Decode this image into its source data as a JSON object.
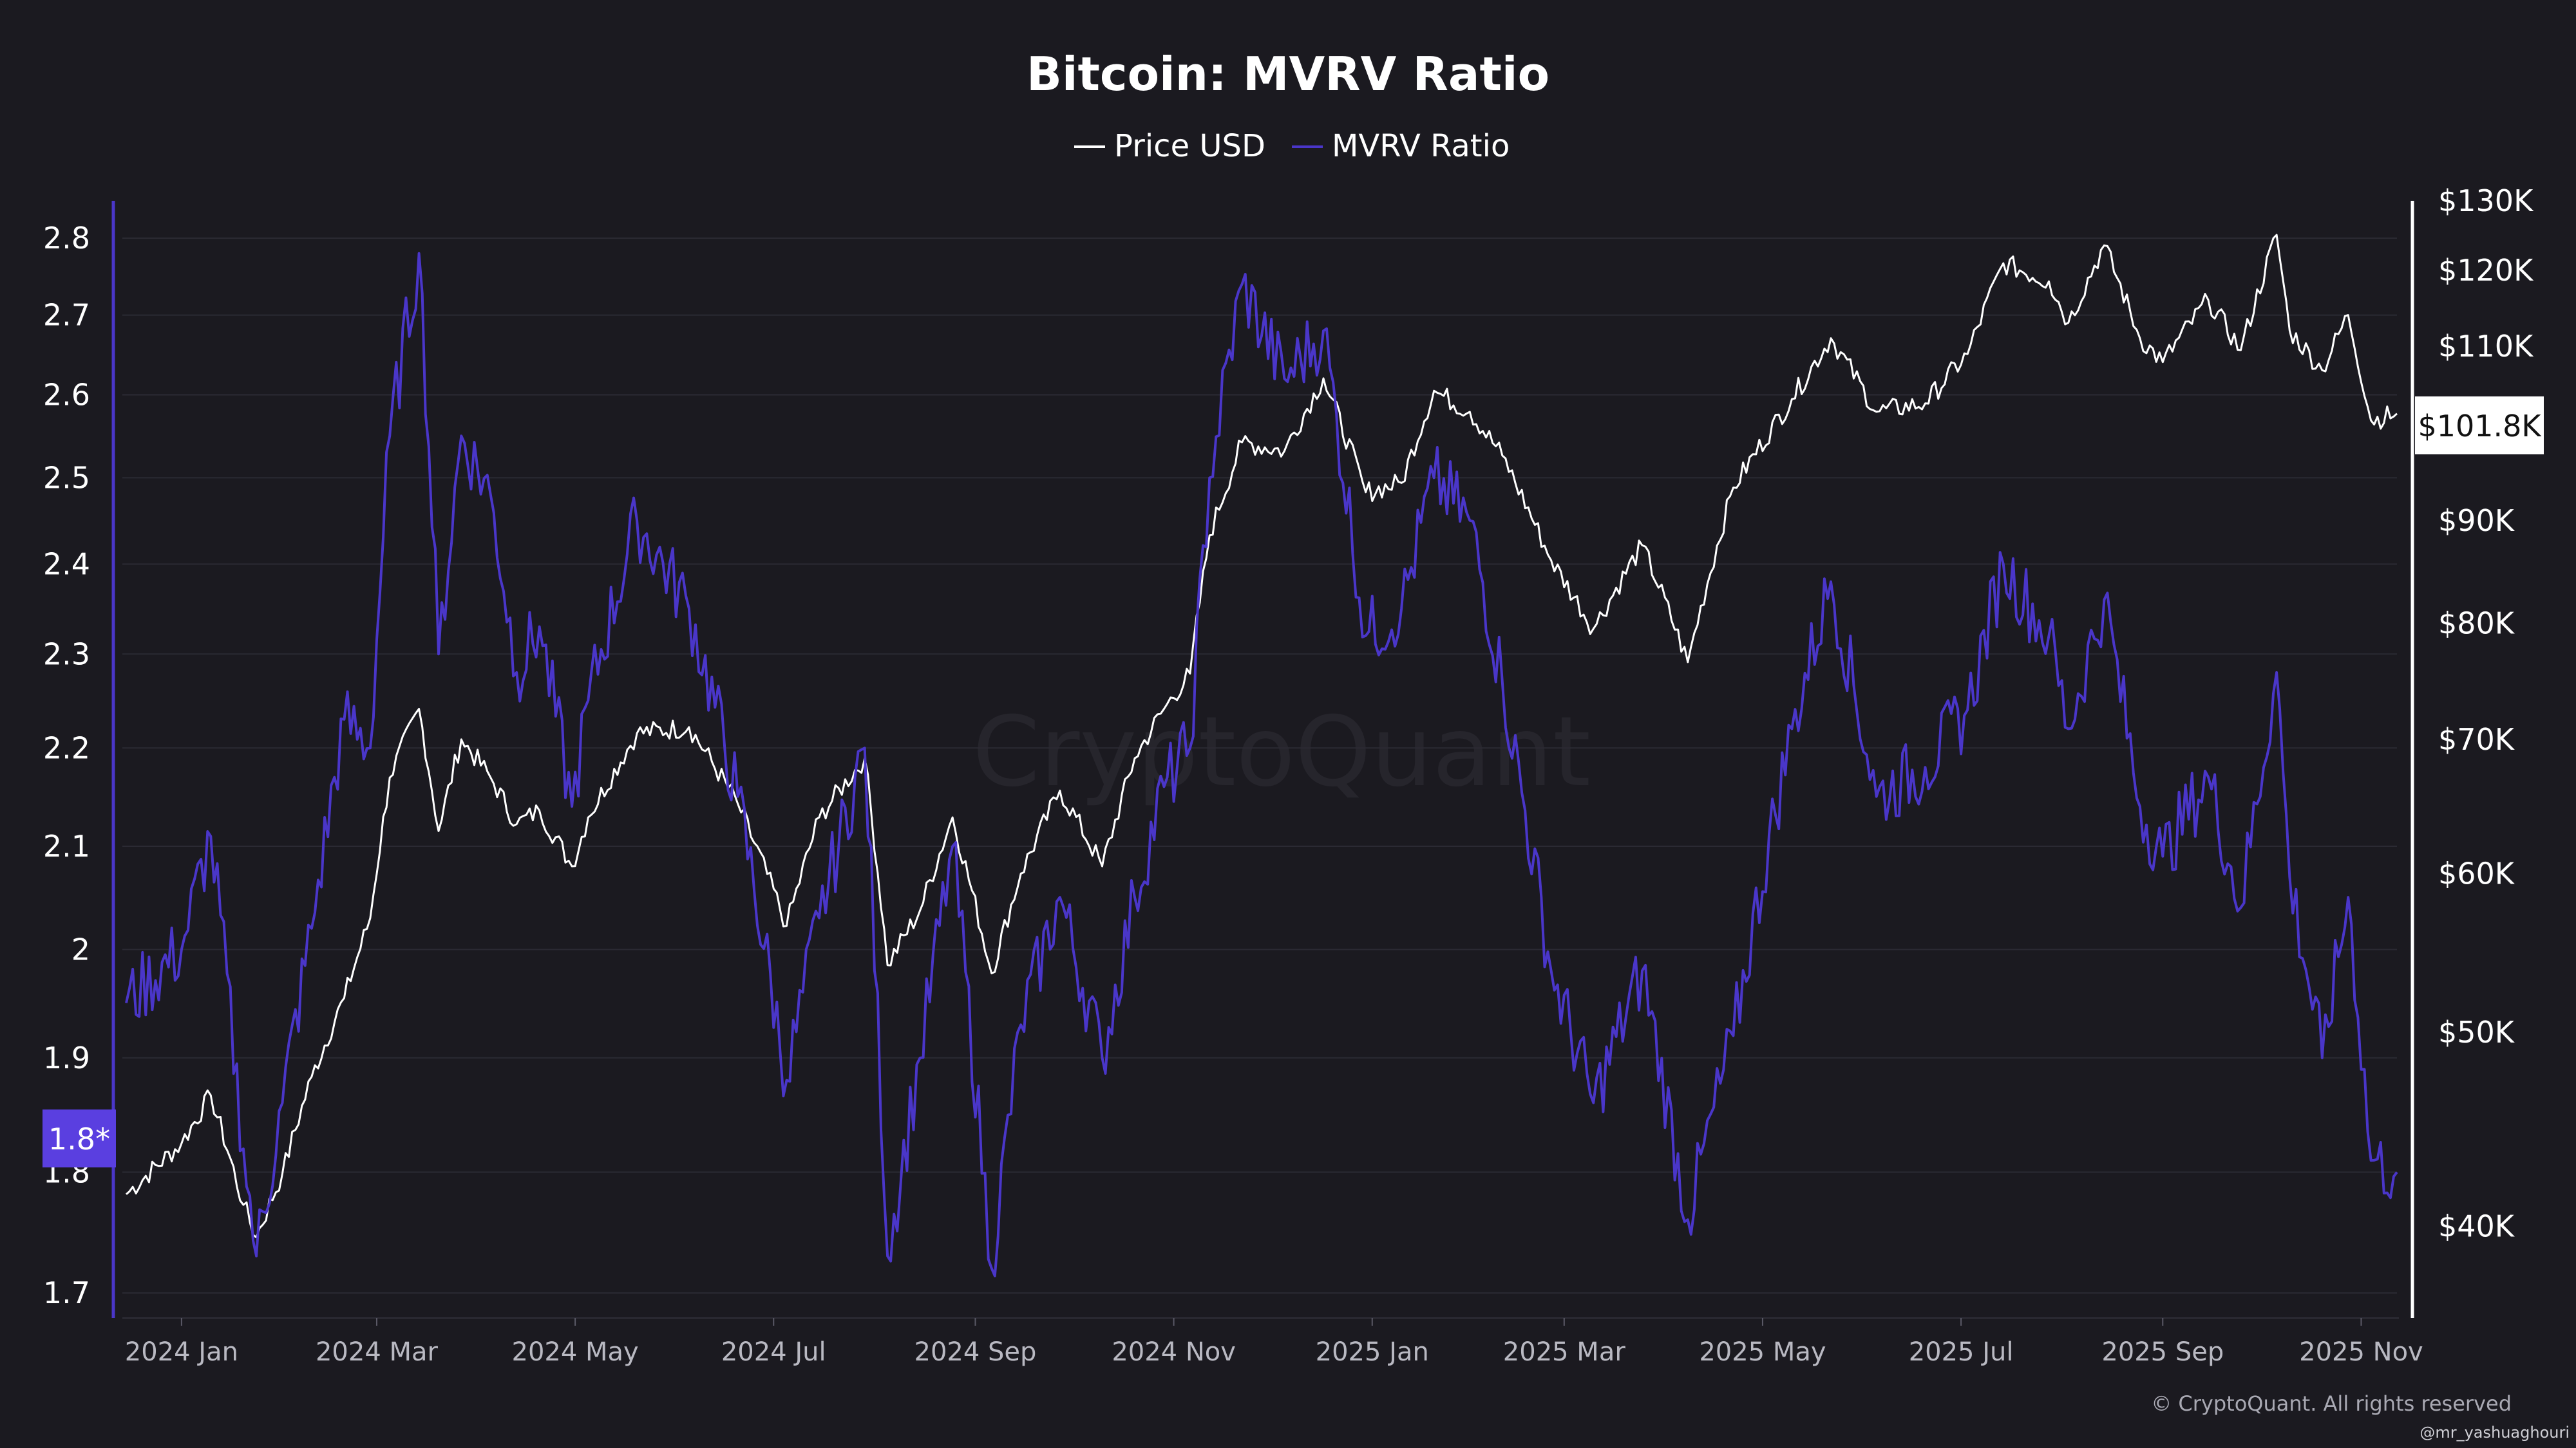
{
  "chart_data": {
    "type": "line",
    "title": "Bitcoin: MVRV Ratio",
    "legend": [
      {
        "name": "Price USD",
        "color": "#ffffff"
      },
      {
        "name": "MVRV Ratio",
        "color": "#4a36c9"
      }
    ],
    "legend_position": "top-center",
    "grid": true,
    "x_axis": {
      "type": "date",
      "range": [
        "2023-12-15",
        "2025-11-12"
      ],
      "tick_labels": [
        "2024 Jan",
        "2024 Mar",
        "2024 May",
        "2024 Jul",
        "2024 Sep",
        "2024 Nov",
        "2025 Jan",
        "2025 Mar",
        "2025 May",
        "2025 Jul",
        "2025 Sep",
        "2025 Nov"
      ],
      "tick_dates": [
        "2024-01-01",
        "2024-03-01",
        "2024-05-01",
        "2024-07-01",
        "2024-09-01",
        "2024-11-01",
        "2025-01-01",
        "2025-03-01",
        "2025-05-01",
        "2025-07-01",
        "2025-09-01",
        "2025-11-01"
      ]
    },
    "y_left": {
      "label": "",
      "scale": "log",
      "range": [
        1.68,
        2.85
      ],
      "ticks": [
        1.7,
        1.8,
        1.9,
        2,
        2.1,
        2.2,
        2.3,
        2.4,
        2.5,
        2.6,
        2.7,
        2.8
      ],
      "tick_labels": [
        "1.7",
        "1.8",
        "1.9",
        "2",
        "2.1",
        "2.2",
        "2.3",
        "2.4",
        "2.5",
        "2.6",
        "2.7",
        "2.8"
      ],
      "current_value_label": "1.8*",
      "current_value": 1.8
    },
    "y_right": {
      "label": "",
      "scale": "log",
      "range": [
        36000,
        130000
      ],
      "ticks": [
        40000,
        50000,
        60000,
        70000,
        80000,
        90000,
        110000,
        120000,
        130000
      ],
      "tick_labels": [
        "$40K",
        "$50K",
        "$60K",
        "$70K",
        "$80K",
        "$90K",
        "$110K",
        "$120K",
        "$130K"
      ],
      "current_value_label": "$101.8K",
      "current_value": 101800
    },
    "series": [
      {
        "name": "Price USD",
        "axis": "right",
        "color": "#ffffff",
        "points": [
          [
            "2023-12-15",
            41500
          ],
          [
            "2024-01-01",
            44000
          ],
          [
            "2024-01-10",
            46500
          ],
          [
            "2024-01-20",
            41000
          ],
          [
            "2024-01-24",
            39500
          ],
          [
            "2024-02-01",
            42500
          ],
          [
            "2024-02-10",
            47500
          ],
          [
            "2024-02-20",
            52000
          ],
          [
            "2024-02-28",
            57000
          ],
          [
            "2024-03-05",
            67000
          ],
          [
            "2024-03-14",
            72500
          ],
          [
            "2024-03-20",
            63000
          ],
          [
            "2024-03-27",
            70000
          ],
          [
            "2024-04-05",
            67000
          ],
          [
            "2024-04-13",
            63500
          ],
          [
            "2024-04-20",
            64500
          ],
          [
            "2024-04-30",
            60500
          ],
          [
            "2024-05-05",
            64000
          ],
          [
            "2024-05-20",
            70500
          ],
          [
            "2024-06-05",
            71000
          ],
          [
            "2024-06-20",
            65000
          ],
          [
            "2024-07-05",
            56500
          ],
          [
            "2024-07-15",
            64000
          ],
          [
            "2024-07-29",
            68500
          ],
          [
            "2024-08-05",
            54000
          ],
          [
            "2024-08-15",
            57500
          ],
          [
            "2024-08-25",
            64000
          ],
          [
            "2024-09-06",
            53500
          ],
          [
            "2024-09-15",
            60000
          ],
          [
            "2024-09-27",
            66000
          ],
          [
            "2024-10-10",
            60500
          ],
          [
            "2024-10-20",
            68500
          ],
          [
            "2024-10-29",
            72500
          ],
          [
            "2024-11-06",
            75500
          ],
          [
            "2024-11-12",
            88500
          ],
          [
            "2024-11-22",
            98500
          ],
          [
            "2024-12-05",
            97500
          ],
          [
            "2024-12-17",
            106000
          ],
          [
            "2024-12-30",
            93000
          ],
          [
            "2025-01-10",
            94000
          ],
          [
            "2025-01-20",
            104500
          ],
          [
            "2025-01-31",
            102000
          ],
          [
            "2025-02-10",
            97000
          ],
          [
            "2025-02-25",
            86000
          ],
          [
            "2025-03-10",
            79500
          ],
          [
            "2025-03-25",
            87500
          ],
          [
            "2025-04-08",
            76500
          ],
          [
            "2025-04-22",
            93500
          ],
          [
            "2025-05-10",
            103500
          ],
          [
            "2025-05-22",
            111000
          ],
          [
            "2025-06-05",
            102000
          ],
          [
            "2025-06-20",
            103000
          ],
          [
            "2025-07-03",
            109000
          ],
          [
            "2025-07-14",
            121000
          ],
          [
            "2025-07-28",
            118500
          ],
          [
            "2025-08-03",
            113000
          ],
          [
            "2025-08-14",
            123500
          ],
          [
            "2025-08-25",
            111000
          ],
          [
            "2025-09-01",
            108000
          ],
          [
            "2025-09-15",
            116000
          ],
          [
            "2025-09-25",
            109500
          ],
          [
            "2025-10-06",
            125000
          ],
          [
            "2025-10-10",
            112000
          ],
          [
            "2025-10-20",
            107000
          ],
          [
            "2025-10-28",
            114000
          ],
          [
            "2025-11-04",
            101000
          ],
          [
            "2025-11-12",
            101800
          ]
        ]
      },
      {
        "name": "MVRV Ratio",
        "axis": "left",
        "color": "#4a36c9",
        "points": [
          [
            "2023-12-15",
            1.95
          ],
          [
            "2024-01-01",
            2.0
          ],
          [
            "2024-01-10",
            2.11
          ],
          [
            "2024-01-20",
            1.82
          ],
          [
            "2024-01-24",
            1.73
          ],
          [
            "2024-02-01",
            1.86
          ],
          [
            "2024-02-10",
            2.02
          ],
          [
            "2024-02-20",
            2.23
          ],
          [
            "2024-02-28",
            2.2
          ],
          [
            "2024-03-05",
            2.55
          ],
          [
            "2024-03-14",
            2.78
          ],
          [
            "2024-03-20",
            2.3
          ],
          [
            "2024-03-27",
            2.55
          ],
          [
            "2024-04-05",
            2.48
          ],
          [
            "2024-04-13",
            2.28
          ],
          [
            "2024-04-20",
            2.33
          ],
          [
            "2024-04-30",
            2.14
          ],
          [
            "2024-05-05",
            2.25
          ],
          [
            "2024-05-20",
            2.45
          ],
          [
            "2024-06-05",
            2.35
          ],
          [
            "2024-06-20",
            2.15
          ],
          [
            "2024-07-05",
            1.88
          ],
          [
            "2024-07-15",
            2.03
          ],
          [
            "2024-07-29",
            2.2
          ],
          [
            "2024-08-05",
            1.73
          ],
          [
            "2024-08-15",
            1.9
          ],
          [
            "2024-08-25",
            2.1
          ],
          [
            "2024-09-06",
            1.72
          ],
          [
            "2024-09-15",
            1.93
          ],
          [
            "2024-09-27",
            2.05
          ],
          [
            "2024-10-10",
            1.9
          ],
          [
            "2024-10-20",
            2.05
          ],
          [
            "2024-10-29",
            2.16
          ],
          [
            "2024-11-06",
            2.2
          ],
          [
            "2024-11-12",
            2.5
          ],
          [
            "2024-11-22",
            2.74
          ],
          [
            "2024-12-05",
            2.62
          ],
          [
            "2024-12-17",
            2.68
          ],
          [
            "2024-12-30",
            2.32
          ],
          [
            "2025-01-10",
            2.35
          ],
          [
            "2025-01-20",
            2.5
          ],
          [
            "2025-01-31",
            2.45
          ],
          [
            "2025-02-10",
            2.27
          ],
          [
            "2025-02-25",
            1.98
          ],
          [
            "2025-03-10",
            1.86
          ],
          [
            "2025-03-25",
            1.98
          ],
          [
            "2025-04-08",
            1.76
          ],
          [
            "2025-04-22",
            1.92
          ],
          [
            "2025-05-10",
            2.22
          ],
          [
            "2025-05-22",
            2.38
          ],
          [
            "2025-06-05",
            2.15
          ],
          [
            "2025-06-20",
            2.18
          ],
          [
            "2025-07-03",
            2.24
          ],
          [
            "2025-07-14",
            2.4
          ],
          [
            "2025-07-28",
            2.32
          ],
          [
            "2025-08-03",
            2.22
          ],
          [
            "2025-08-14",
            2.36
          ],
          [
            "2025-08-25",
            2.14
          ],
          [
            "2025-09-01",
            2.09
          ],
          [
            "2025-09-15",
            2.17
          ],
          [
            "2025-09-25",
            2.04
          ],
          [
            "2025-10-06",
            2.28
          ],
          [
            "2025-10-10",
            2.07
          ],
          [
            "2025-10-20",
            1.9
          ],
          [
            "2025-10-28",
            2.05
          ],
          [
            "2025-11-04",
            1.81
          ],
          [
            "2025-11-12",
            1.8
          ]
        ]
      }
    ]
  },
  "watermark": "CryptoQuant",
  "footer": {
    "copyright": "© CryptoQuant. All rights reserved",
    "handle": "@mr_yashuaghouri"
  }
}
